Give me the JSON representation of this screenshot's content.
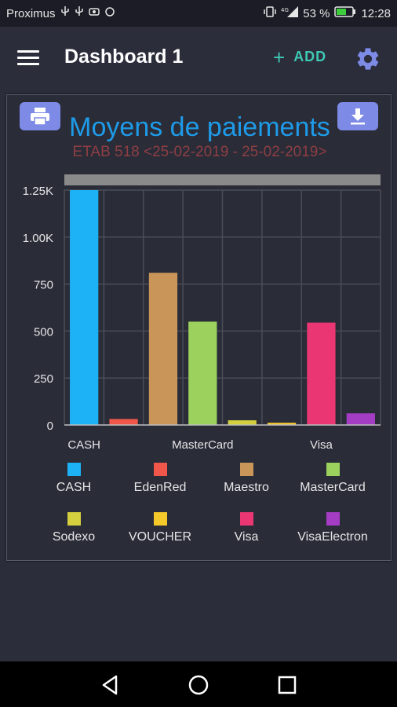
{
  "status_bar": {
    "carrier": "Proximus",
    "battery": "53 %",
    "time": "12:28"
  },
  "app_bar": {
    "title": "Dashboard 1",
    "add_label": "ADD",
    "icons": [
      "menu-icon",
      "plus-icon",
      "gear-icon"
    ]
  },
  "card": {
    "icons": [
      "printer-icon",
      "download-icon"
    ],
    "button_color": "#7d8ae6"
  },
  "chart_data": {
    "type": "bar",
    "title": "Moyens de paiements",
    "subtitle": "ETAB 518 <25-02-2019 - 25-02-2019>",
    "categories": [
      "CASH",
      "EdenRed",
      "Maestro",
      "MasterCard",
      "Sodexo",
      "VOUCHER",
      "Visa",
      "VisaElectron"
    ],
    "x_tick_labels": [
      "CASH",
      "MasterCard",
      "Visa"
    ],
    "values": [
      1250,
      32,
      810,
      550,
      25,
      12,
      545,
      62
    ],
    "colors": [
      "#1db2f5",
      "#f0574a",
      "#c99558",
      "#9cd15e",
      "#d4cf3e",
      "#f6c92a",
      "#ea3672",
      "#a43dc3"
    ],
    "y_ticks": [
      0,
      250,
      500,
      750,
      1000,
      1250
    ],
    "y_tick_labels": [
      "0",
      "250",
      "500",
      "750",
      "1.00K",
      "1.25K"
    ],
    "ylim": [
      0,
      1250
    ],
    "grid": true,
    "legend_position": "bottom",
    "xlabel": "",
    "ylabel": ""
  },
  "nav_bar": {
    "icons": [
      "back-icon",
      "home-icon",
      "recents-icon"
    ]
  }
}
